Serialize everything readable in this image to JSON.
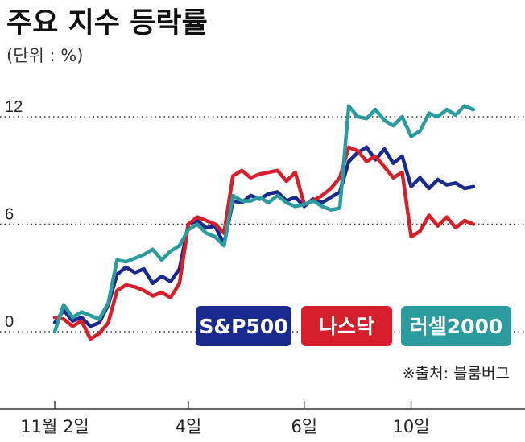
{
  "title": "주요 지수 등락률",
  "unit_label": "(단위 : %)",
  "source": "※출처: 블룸버그",
  "chart_data": {
    "type": "line",
    "title": "주요 지수 등락률",
    "ylabel": "(단위 : %)",
    "ylim": [
      -2.5,
      14.5
    ],
    "yticks": [
      0,
      6,
      12
    ],
    "ytick_labels": [
      "0",
      "6",
      "12"
    ],
    "xlim": [
      0,
      52
    ],
    "xticks": [
      {
        "x": 0,
        "label": "11월 2일"
      },
      {
        "x": 15,
        "label": "4일"
      },
      {
        "x": 28,
        "label": "6일"
      },
      {
        "x": 40,
        "label": "10일"
      }
    ],
    "grid": "dotted lines at y ticks",
    "legend_position": "bottom-right, inside plot",
    "series": [
      {
        "name": "S&P500",
        "color": "#1a2a8c",
        "x": [
          0,
          1,
          2,
          3,
          4,
          5,
          6,
          7,
          8,
          9,
          10,
          11,
          12,
          13,
          14,
          15,
          16,
          17,
          18,
          19,
          20,
          21,
          22,
          23,
          24,
          25,
          26,
          27,
          28,
          29,
          30,
          31,
          32,
          33,
          34,
          35,
          36,
          37,
          38,
          39,
          40,
          41,
          42,
          43,
          44,
          45,
          46,
          47
        ],
        "values": [
          0.5,
          1.2,
          0.6,
          0.8,
          0.3,
          0.5,
          1.5,
          3.2,
          3.6,
          3.3,
          3.5,
          2.7,
          3.1,
          2.8,
          3.5,
          6.0,
          6.2,
          5.8,
          5.9,
          4.9,
          7.3,
          7.2,
          7.6,
          7.4,
          7.7,
          7.8,
          7.3,
          7.5,
          7.0,
          7.4,
          7.2,
          7.5,
          7.8,
          9.5,
          10.0,
          10.3,
          9.6,
          10.2,
          9.4,
          9.8,
          8.1,
          8.6,
          8.0,
          8.5,
          8.2,
          8.3,
          8.0,
          8.1
        ]
      },
      {
        "name": "나스닥",
        "color": "#d61f2b",
        "x": [
          0,
          1,
          2,
          3,
          4,
          5,
          6,
          7,
          8,
          9,
          10,
          11,
          12,
          13,
          14,
          15,
          16,
          17,
          18,
          19,
          20,
          21,
          22,
          23,
          24,
          25,
          26,
          27,
          28,
          29,
          30,
          31,
          32,
          33,
          34,
          35,
          36,
          37,
          38,
          39,
          40,
          41,
          42,
          43,
          44,
          45,
          46,
          47
        ],
        "values": [
          0.8,
          0.7,
          0.3,
          0.6,
          -0.4,
          -0.1,
          0.5,
          2.3,
          2.6,
          2.5,
          2.3,
          2.0,
          2.2,
          1.9,
          2.7,
          6.0,
          6.4,
          6.2,
          6.0,
          5.5,
          8.7,
          9.0,
          8.6,
          8.8,
          8.9,
          9.0,
          8.4,
          8.9,
          7.1,
          7.3,
          7.6,
          8.0,
          8.6,
          10.3,
          10.1,
          9.5,
          9.8,
          9.2,
          8.6,
          8.9,
          5.3,
          5.6,
          6.5,
          5.9,
          6.4,
          5.8,
          6.2,
          6.0
        ]
      },
      {
        "name": "러셀2000",
        "color": "#2a9c9e",
        "x": [
          0,
          1,
          2,
          3,
          4,
          5,
          6,
          7,
          8,
          9,
          10,
          11,
          12,
          13,
          14,
          15,
          16,
          17,
          18,
          19,
          20,
          21,
          22,
          23,
          24,
          25,
          26,
          27,
          28,
          29,
          30,
          31,
          32,
          33,
          34,
          35,
          36,
          37,
          38,
          39,
          40,
          41,
          42,
          43,
          44,
          45,
          46,
          47
        ],
        "values": [
          0.0,
          1.5,
          0.8,
          1.1,
          0.9,
          0.7,
          1.6,
          4.0,
          3.9,
          4.1,
          4.3,
          4.6,
          4.0,
          4.5,
          4.8,
          5.7,
          6.0,
          5.5,
          5.3,
          4.8,
          7.6,
          7.3,
          7.3,
          7.5,
          7.2,
          7.6,
          7.2,
          7.0,
          7.1,
          7.3,
          7.0,
          6.8,
          6.9,
          12.6,
          12.0,
          11.9,
          12.4,
          11.8,
          11.5,
          12.0,
          10.9,
          11.2,
          12.2,
          12.0,
          12.4,
          12.1,
          12.6,
          12.4
        ]
      }
    ]
  },
  "colors": {
    "sp500": "#1a2a8c",
    "nasdaq": "#d61f2b",
    "russell": "#2a9c9e",
    "grid": "#333333"
  }
}
